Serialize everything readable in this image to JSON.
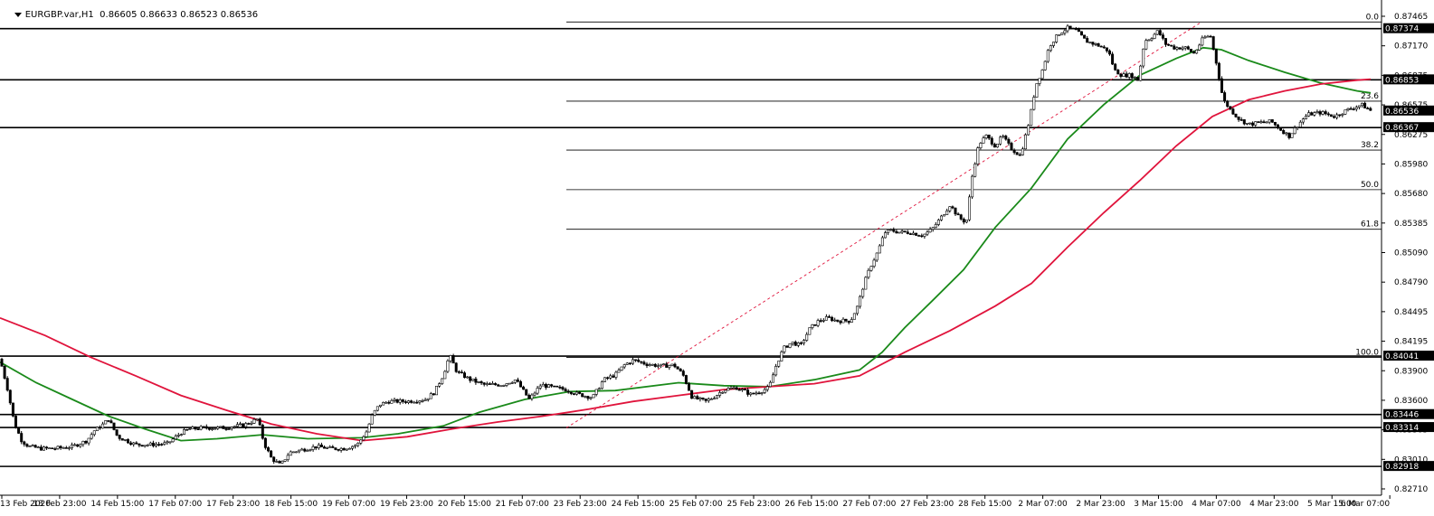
{
  "header": {
    "symbol_timeframe": "EURGBP.var,H1",
    "ohlc": "0.86605 0.86633 0.86523 0.86536",
    "menu_icon": "triangle-down-icon"
  },
  "colors": {
    "background": "#ffffff",
    "candle": "#000000",
    "ma_fast": "#1a8a1a",
    "ma_slow": "#e0143c",
    "fib_line": "#000000",
    "trend_dashed": "#e0143c",
    "price_box_bg": "#000000",
    "price_box_text": "#ffffff"
  },
  "price_axis": {
    "ticks": [
      "0.87465",
      "0.87170",
      "0.86875",
      "0.86575",
      "0.86275",
      "0.85980",
      "0.85680",
      "0.85385",
      "0.85090",
      "0.84790",
      "0.84495",
      "0.84195",
      "0.83900",
      "0.83600",
      "0.83305",
      "0.83010",
      "0.82710"
    ],
    "current_price": "0.86536"
  },
  "horizontal_levels": [
    {
      "label": "0.87374",
      "price": 0.87374
    },
    {
      "label": "0.86853",
      "price": 0.86853
    },
    {
      "label": "0.86367",
      "price": 0.86367
    },
    {
      "label": "0.84041",
      "price": 0.84041
    },
    {
      "label": "0.83446",
      "price": 0.83446
    },
    {
      "label": "0.83314",
      "price": 0.83314
    },
    {
      "label": "0.82918",
      "price": 0.82918
    }
  ],
  "fibonacci": {
    "levels": [
      {
        "label": "0.0",
        "price": 0.87442
      },
      {
        "label": "23.6",
        "price": 0.86636
      },
      {
        "label": "38.2",
        "price": 0.86138
      },
      {
        "label": "50.0",
        "price": 0.85735
      },
      {
        "label": "61.8",
        "price": 0.85332
      },
      {
        "label": "100.0",
        "price": 0.84028
      }
    ]
  },
  "time_axis": {
    "labels": [
      "13 Feb 2020",
      "13 Feb 23:00",
      "14 Feb 15:00",
      "17 Feb 07:00",
      "17 Feb 23:00",
      "18 Feb 15:00",
      "19 Feb 07:00",
      "19 Feb 23:00",
      "20 Feb 15:00",
      "21 Feb 07:00",
      "23 Feb 23:00",
      "24 Feb 15:00",
      "25 Feb 07:00",
      "25 Feb 23:00",
      "26 Feb 15:00",
      "27 Feb 07:00",
      "27 Feb 23:00",
      "28 Feb 15:00",
      "2 Mar 07:00",
      "2 Mar 23:00",
      "3 Mar 15:00",
      "4 Mar 07:00",
      "4 Mar 23:00",
      "5 Mar 15:00",
      "6 Mar 07:00"
    ]
  },
  "chart_data": {
    "type": "candlestick",
    "symbol": "EURGBP.var",
    "timeframe": "H1",
    "y_range": [
      0.8266,
      0.8752
    ],
    "close_path": [
      [
        0,
        0.8401
      ],
      [
        8,
        0.8372
      ],
      [
        16,
        0.8335
      ],
      [
        24,
        0.8318
      ],
      [
        32,
        0.8312
      ],
      [
        45,
        0.831
      ],
      [
        60,
        0.831
      ],
      [
        80,
        0.8312
      ],
      [
        96,
        0.8318
      ],
      [
        104,
        0.8328
      ],
      [
        112,
        0.8333
      ],
      [
        120,
        0.834
      ],
      [
        130,
        0.8322
      ],
      [
        140,
        0.8318
      ],
      [
        150,
        0.8314
      ],
      [
        165,
        0.8314
      ],
      [
        185,
        0.8315
      ],
      [
        200,
        0.8326
      ],
      [
        210,
        0.833
      ],
      [
        225,
        0.8331
      ],
      [
        245,
        0.8331
      ],
      [
        270,
        0.8334
      ],
      [
        285,
        0.834
      ],
      [
        292,
        0.8315
      ],
      [
        300,
        0.83
      ],
      [
        310,
        0.8293
      ],
      [
        320,
        0.8306
      ],
      [
        335,
        0.8309
      ],
      [
        350,
        0.8312
      ],
      [
        365,
        0.831
      ],
      [
        380,
        0.831
      ],
      [
        395,
        0.8314
      ],
      [
        405,
        0.8327
      ],
      [
        412,
        0.8345
      ],
      [
        420,
        0.8355
      ],
      [
        430,
        0.8358
      ],
      [
        450,
        0.8358
      ],
      [
        470,
        0.836
      ],
      [
        480,
        0.8367
      ],
      [
        490,
        0.8385
      ],
      [
        497,
        0.8405
      ],
      [
        505,
        0.8388
      ],
      [
        520,
        0.838
      ],
      [
        535,
        0.8375
      ],
      [
        555,
        0.8375
      ],
      [
        570,
        0.838
      ],
      [
        585,
        0.836
      ],
      [
        598,
        0.8375
      ],
      [
        612,
        0.8372
      ],
      [
        625,
        0.837
      ],
      [
        640,
        0.8365
      ],
      [
        655,
        0.8362
      ],
      [
        667,
        0.838
      ],
      [
        680,
        0.8385
      ],
      [
        690,
        0.8395
      ],
      [
        700,
        0.84
      ],
      [
        715,
        0.8396
      ],
      [
        730,
        0.8394
      ],
      [
        745,
        0.8395
      ],
      [
        755,
        0.8385
      ],
      [
        765,
        0.8362
      ],
      [
        780,
        0.8358
      ],
      [
        790,
        0.8363
      ],
      [
        800,
        0.837
      ],
      [
        815,
        0.8372
      ],
      [
        830,
        0.8365
      ],
      [
        840,
        0.8368
      ],
      [
        850,
        0.8372
      ],
      [
        858,
        0.8395
      ],
      [
        866,
        0.8412
      ],
      [
        875,
        0.8418
      ],
      [
        885,
        0.8415
      ],
      [
        895,
        0.8432
      ],
      [
        905,
        0.844
      ],
      [
        915,
        0.8443
      ],
      [
        925,
        0.844
      ],
      [
        940,
        0.844
      ],
      [
        948,
        0.8455
      ],
      [
        955,
        0.8478
      ],
      [
        962,
        0.8495
      ],
      [
        970,
        0.851
      ],
      [
        978,
        0.853
      ],
      [
        985,
        0.8532
      ],
      [
        995,
        0.853
      ],
      [
        1005,
        0.853
      ],
      [
        1020,
        0.8527
      ],
      [
        1030,
        0.8533
      ],
      [
        1040,
        0.8545
      ],
      [
        1050,
        0.8558
      ],
      [
        1060,
        0.8545
      ],
      [
        1068,
        0.854
      ],
      [
        1075,
        0.859
      ],
      [
        1082,
        0.862
      ],
      [
        1090,
        0.8628
      ],
      [
        1100,
        0.8618
      ],
      [
        1108,
        0.8628
      ],
      [
        1118,
        0.8615
      ],
      [
        1128,
        0.8608
      ],
      [
        1138,
        0.8645
      ],
      [
        1145,
        0.868
      ],
      [
        1152,
        0.8695
      ],
      [
        1160,
        0.872
      ],
      [
        1170,
        0.8732
      ],
      [
        1180,
        0.8738
      ],
      [
        1190,
        0.8735
      ],
      [
        1200,
        0.8725
      ],
      [
        1215,
        0.872
      ],
      [
        1225,
        0.8715
      ],
      [
        1232,
        0.8695
      ],
      [
        1240,
        0.869
      ],
      [
        1250,
        0.869
      ],
      [
        1258,
        0.8685
      ],
      [
        1265,
        0.8725
      ],
      [
        1272,
        0.8728
      ],
      [
        1280,
        0.8735
      ],
      [
        1288,
        0.8722
      ],
      [
        1298,
        0.8718
      ],
      [
        1310,
        0.8718
      ],
      [
        1320,
        0.8712
      ],
      [
        1330,
        0.8728
      ],
      [
        1338,
        0.873
      ],
      [
        1345,
        0.87
      ],
      [
        1352,
        0.8665
      ],
      [
        1360,
        0.8655
      ],
      [
        1370,
        0.8645
      ],
      [
        1380,
        0.864
      ],
      [
        1395,
        0.8642
      ],
      [
        1405,
        0.8643
      ],
      [
        1415,
        0.8635
      ],
      [
        1425,
        0.8628
      ],
      [
        1435,
        0.864
      ],
      [
        1445,
        0.865
      ],
      [
        1460,
        0.8652
      ],
      [
        1475,
        0.8648
      ],
      [
        1490,
        0.8655
      ],
      [
        1505,
        0.866
      ],
      [
        1515,
        0.8654
      ]
    ],
    "moving_averages": [
      {
        "color": "green",
        "points": [
          [
            0,
            0.8398
          ],
          [
            40,
            0.8377
          ],
          [
            80,
            0.836
          ],
          [
            120,
            0.8343
          ],
          [
            160,
            0.833
          ],
          [
            200,
            0.8318
          ],
          [
            240,
            0.832
          ],
          [
            290,
            0.8324
          ],
          [
            340,
            0.832
          ],
          [
            400,
            0.8321
          ],
          [
            440,
            0.8325
          ],
          [
            490,
            0.8333
          ],
          [
            530,
            0.8347
          ],
          [
            580,
            0.836
          ],
          [
            630,
            0.8368
          ],
          [
            680,
            0.8369
          ],
          [
            750,
            0.8377
          ],
          [
            800,
            0.8374
          ],
          [
            850,
            0.8373
          ],
          [
            900,
            0.838
          ],
          [
            950,
            0.839
          ],
          [
            975,
            0.8408
          ],
          [
            1000,
            0.8433
          ],
          [
            1030,
            0.846
          ],
          [
            1065,
            0.8492
          ],
          [
            1100,
            0.8535
          ],
          [
            1140,
            0.8575
          ],
          [
            1180,
            0.8625
          ],
          [
            1220,
            0.866
          ],
          [
            1260,
            0.869
          ],
          [
            1300,
            0.8707
          ],
          [
            1330,
            0.8718
          ],
          [
            1350,
            0.8716
          ],
          [
            1380,
            0.8705
          ],
          [
            1420,
            0.8693
          ],
          [
            1460,
            0.8682
          ],
          [
            1500,
            0.8674
          ],
          [
            1515,
            0.8672
          ]
        ]
      },
      {
        "color": "red",
        "points": [
          [
            0,
            0.8443
          ],
          [
            50,
            0.8425
          ],
          [
            100,
            0.8403
          ],
          [
            150,
            0.8384
          ],
          [
            200,
            0.8364
          ],
          [
            250,
            0.8349
          ],
          [
            300,
            0.8335
          ],
          [
            350,
            0.8325
          ],
          [
            400,
            0.8318
          ],
          [
            450,
            0.8322
          ],
          [
            500,
            0.833
          ],
          [
            550,
            0.8337
          ],
          [
            600,
            0.8343
          ],
          [
            650,
            0.835
          ],
          [
            700,
            0.8358
          ],
          [
            750,
            0.8364
          ],
          [
            800,
            0.837
          ],
          [
            850,
            0.8373
          ],
          [
            900,
            0.8376
          ],
          [
            950,
            0.8384
          ],
          [
            1000,
            0.8408
          ],
          [
            1050,
            0.843
          ],
          [
            1100,
            0.8455
          ],
          [
            1140,
            0.8478
          ],
          [
            1180,
            0.8515
          ],
          [
            1220,
            0.855
          ],
          [
            1260,
            0.8583
          ],
          [
            1300,
            0.8618
          ],
          [
            1340,
            0.8648
          ],
          [
            1380,
            0.8665
          ],
          [
            1420,
            0.8674
          ],
          [
            1460,
            0.8681
          ],
          [
            1500,
            0.8685
          ],
          [
            1515,
            0.8686
          ]
        ]
      }
    ]
  }
}
